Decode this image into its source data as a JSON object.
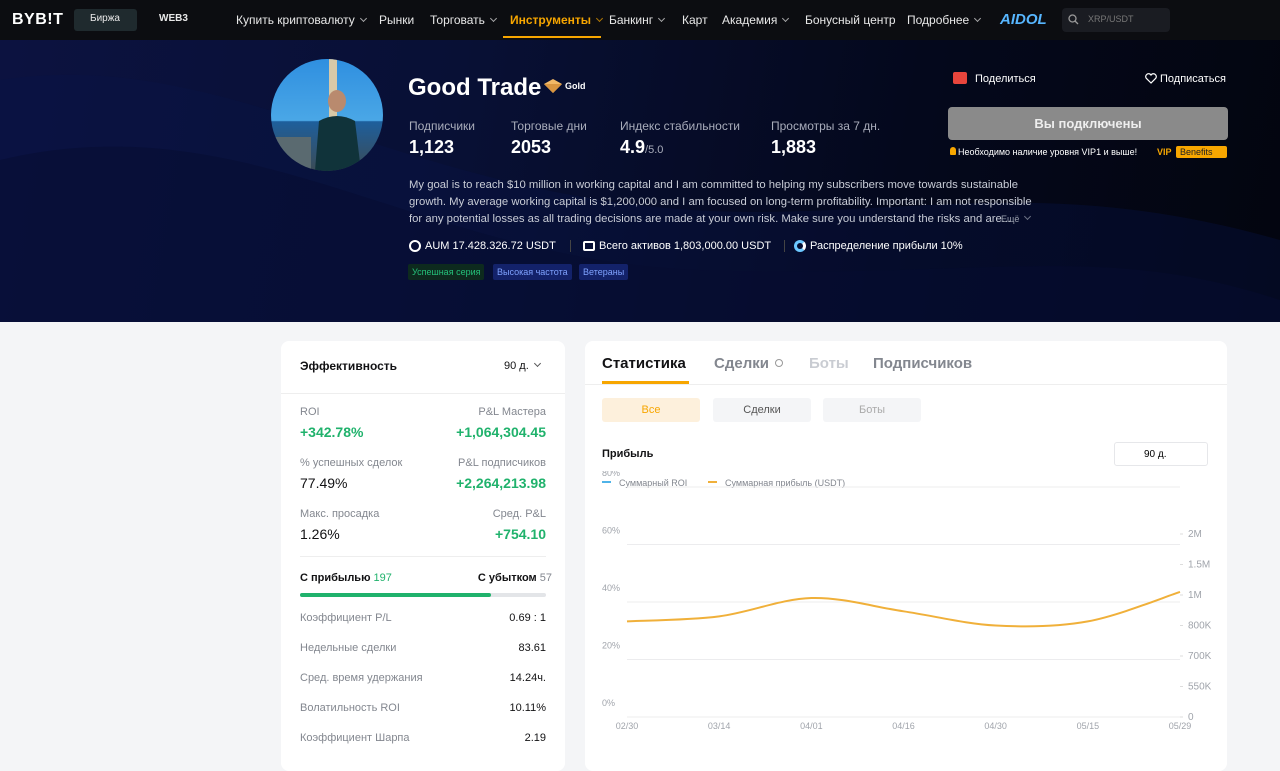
{
  "nav": {
    "logo": "BYB!T",
    "items": [
      "Биржа",
      "WEB3",
      "Купить криптовалюту",
      "Рынки",
      "Торговать",
      "Инструменты",
      "Банкинг",
      "Карт",
      "Академия",
      "Бонусный центр",
      "Подробнее",
      "AIDOL"
    ],
    "search": "XRP/USDT"
  },
  "profile": {
    "name": "Good Trade",
    "badge": "Gold",
    "stats": [
      {
        "label": "Подписчики",
        "value": "1,123"
      },
      {
        "label": "Торговые дни",
        "value": "2053"
      },
      {
        "label": "Индекс стабильности",
        "value": "4.9",
        "suffix": "/5.0"
      },
      {
        "label": "Просмотры за 7 дн.",
        "value": "1,883"
      }
    ],
    "share": "Поделиться",
    "subscribe": "Подписаться",
    "button": "Вы подключены",
    "notice": "Необходимо наличие уровня VIP1 и выше!",
    "vip": "VIP",
    "benefits": "Benefits",
    "description": [
      "My goal is to reach $10 million in working capital and I am committed to helping my subscribers move towards sustainable",
      "growth. My average working capital is $1,200,000 and I am focused on long-term profitability. Important: I am not responsible",
      "for any potential losses as all trading decisions are made at your own risk. Make sure you understand the risks and are..."
    ],
    "more": "Ещё",
    "assets": [
      "AUM 17.428.326.72 USDT",
      "Всего активов 1,803,000.00 USDT",
      "Распределение прибыли 10%"
    ],
    "tags": [
      "Успешная серия",
      "Высокая частота",
      "Ветераны"
    ]
  },
  "performance": {
    "title": "Эффективность",
    "period": "90 д.",
    "metrics": [
      {
        "label": "ROI",
        "value": "+342.78%"
      },
      {
        "label": "P&L Мастера",
        "value": "+1,064,304.45"
      },
      {
        "label": "% успешных сделок",
        "value": "77.49%"
      },
      {
        "label": "P&L подписчиков",
        "value": "+2,264,213.98"
      },
      {
        "label": "Макс. просадка",
        "value": "1.26%"
      },
      {
        "label": "Сред. P&L",
        "value": "+754.10"
      }
    ],
    "win_label": "С прибылью",
    "win_count": 197,
    "loss_label": "С убытком",
    "loss_count": 57,
    "rows": [
      {
        "label": "Коэффициент P/L",
        "value": "0.69 : 1"
      },
      {
        "label": "Недельные сделки",
        "value": "83.61"
      },
      {
        "label": "Сред. время удержания",
        "value": "14.24ч."
      },
      {
        "label": "Волатильность ROI",
        "value": "10.11%"
      },
      {
        "label": "Коэффициент Шарпа",
        "value": "2.19"
      }
    ]
  },
  "stats": {
    "tabs": [
      "Статистика",
      "Сделки",
      "Боты",
      "Подписчиков"
    ],
    "filters": [
      "Все",
      "Сделки",
      "Боты"
    ],
    "chart": {
      "type": "line",
      "title": "Прибыль",
      "period": "90 д.",
      "categories": [
        "02/30",
        "03/14",
        "04/01",
        "04/16",
        "04/30",
        "05/15",
        "05/29"
      ],
      "series": [
        {
          "name": "Суммарный ROI",
          "color": "#4fb3e8",
          "values": []
        },
        {
          "name": "Суммарная прибыль (USDT)",
          "color": "#f0b03a",
          "axis": "y2",
          "values": [
            827000,
            860000,
            980000,
            893000,
            800000,
            827000,
            1050000
          ]
        }
      ],
      "ylim": [
        0,
        80
      ],
      "yticks": [
        {
          "value": 0,
          "label": "0%"
        },
        {
          "value": 20,
          "label": "20%"
        },
        {
          "value": 40,
          "label": "40%"
        },
        {
          "value": 60,
          "label": "60%"
        },
        {
          "value": 80,
          "label": "80%"
        }
      ],
      "y2lim": [
        0,
        2000000
      ],
      "y2ticks": [
        0,
        {
          "value": 550000,
          "label": "550K"
        },
        {
          "value": 700000,
          "label": "700K"
        },
        {
          "value": 800000,
          "label": "800K"
        },
        {
          "value": 1000000,
          "label": "1M"
        },
        {
          "value": 1500000,
          "label": "1.5M"
        },
        {
          "value": 2000000,
          "label": "2M"
        }
      ],
      "grid": true
    }
  }
}
